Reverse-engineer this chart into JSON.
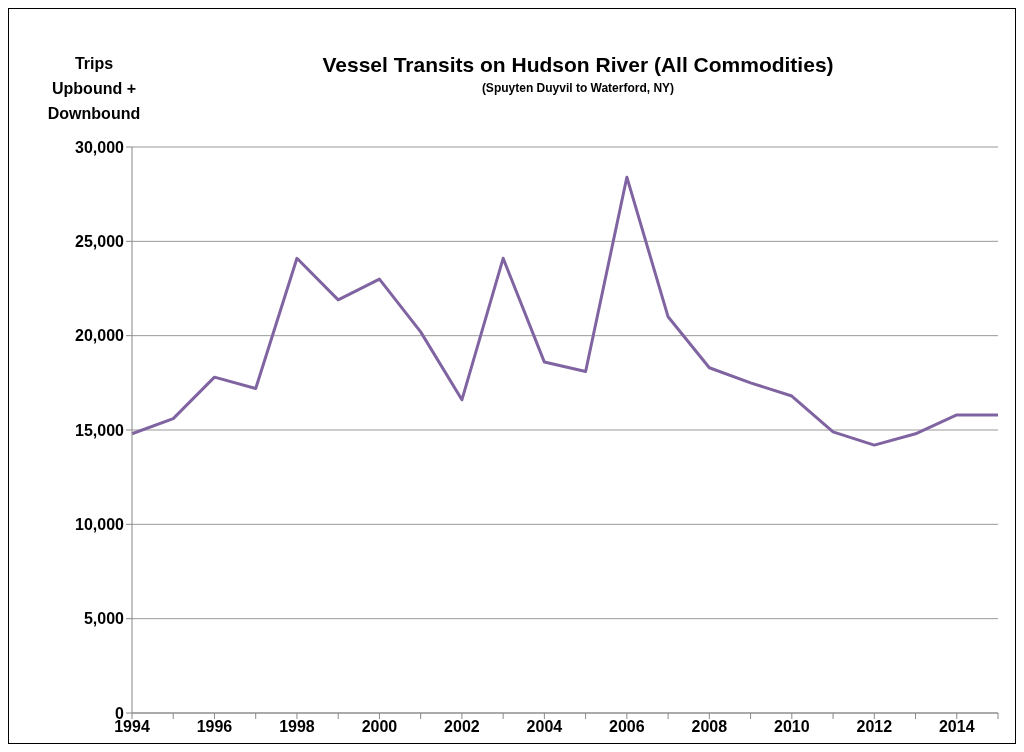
{
  "chart_data": {
    "type": "line",
    "title": "Vessel Transits on Hudson River (All Commodities)",
    "subtitle": "(Spuyten Duyvil to Waterford, NY)",
    "ylabel": "Trips\nUpbound +\nDownbound",
    "categories": [
      "1994",
      null,
      "1996",
      null,
      "1998",
      null,
      "2000",
      null,
      "2002",
      null,
      "2004",
      null,
      "2006",
      null,
      "2008",
      null,
      "2010",
      null,
      "2012",
      null,
      "2014",
      null
    ],
    "series": [
      {
        "color": "#8064a2",
        "values": [
          14800,
          15600,
          17800,
          17200,
          24100,
          21900,
          23000,
          20200,
          16600,
          24100,
          18600,
          18100,
          28400,
          21000,
          18300,
          17500,
          16800,
          14900,
          14200,
          14800,
          15800,
          15800
        ]
      }
    ],
    "ylim": [
      0,
      30000
    ],
    "yticks": [
      {
        "value": 0,
        "label": "0"
      },
      {
        "value": 5000,
        "label": "5,000"
      },
      {
        "value": 10000,
        "label": "10,000"
      },
      {
        "value": 15000,
        "label": "15,000"
      },
      {
        "value": 20000,
        "label": "20,000"
      },
      {
        "value": 25000,
        "label": "25,000"
      },
      {
        "value": 30000,
        "label": "30,000"
      }
    ],
    "grid": "y",
    "legend": false,
    "marker": "none",
    "line_style": "solid"
  }
}
